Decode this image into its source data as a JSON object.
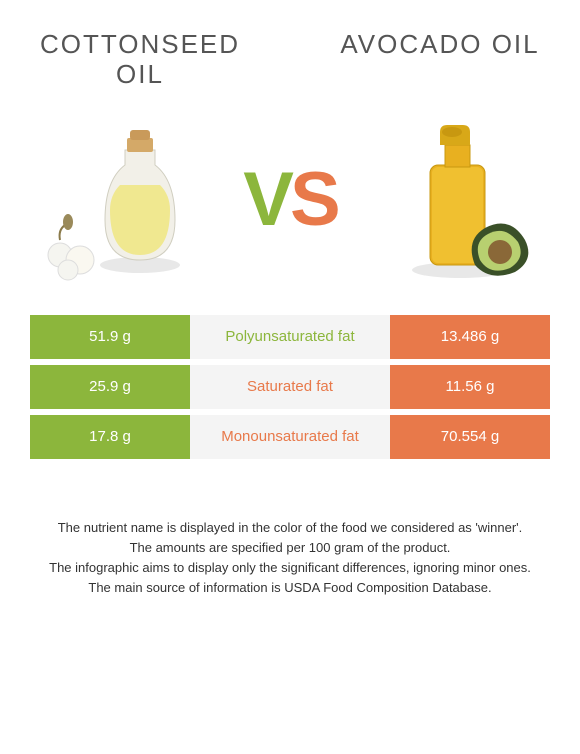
{
  "header": {
    "left_title": "COTTONSEED OIL",
    "right_title": "AVOCADO OIL"
  },
  "vs": {
    "v_text": "V",
    "s_text": "S",
    "v_color": "#8cb63c",
    "s_color": "#e8794a"
  },
  "colors": {
    "left_bg": "#8cb63c",
    "right_bg": "#e8794a",
    "mid_bg": "#f4f4f4"
  },
  "rows": [
    {
      "left": "51.9 g",
      "label": "Polyunsaturated fat",
      "label_color": "#8cb63c",
      "right": "13.486 g"
    },
    {
      "left": "25.9 g",
      "label": "Saturated fat",
      "label_color": "#e8794a",
      "right": "11.56 g"
    },
    {
      "left": "17.8 g",
      "label": "Monounsaturated fat",
      "label_color": "#e8794a",
      "right": "70.554 g"
    }
  ],
  "footnotes": [
    "The nutrient name is displayed in the color of the food we considered as 'winner'.",
    "The amounts are specified per 100 gram of the product.",
    "The infographic aims to display only the significant differences, ignoring minor ones.",
    "The main source of information is USDA Food Composition Database."
  ]
}
